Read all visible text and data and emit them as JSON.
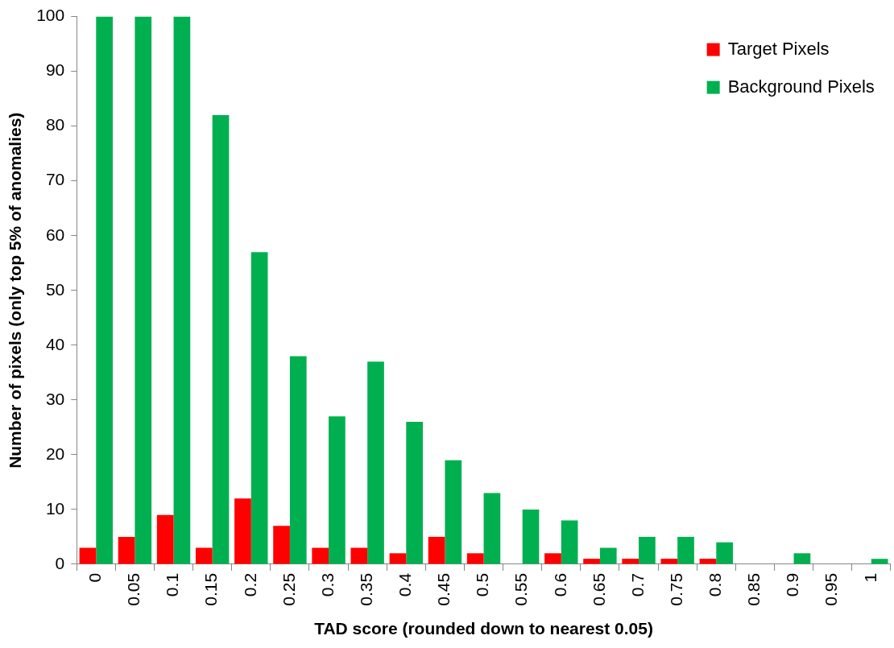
{
  "chart_data": {
    "type": "bar",
    "xlabel": "TAD score (rounded down to nearest 0.05)",
    "ylabel": "Number of pixels (only top 5% of anomalies)",
    "categories": [
      "0",
      "0.05",
      "0.1",
      "0.15",
      "0.2",
      "0.25",
      "0.3",
      "0.35",
      "0.4",
      "0.45",
      "0.5",
      "0.55",
      "0.6",
      "0.65",
      "0.7",
      "0.75",
      "0.8",
      "0.85",
      "0.9",
      "0.95",
      "1"
    ],
    "series": [
      {
        "name": "Target Pixels",
        "color": "#ff0000",
        "values": [
          3,
          5,
          9,
          3,
          12,
          7,
          3,
          3,
          2,
          5,
          2,
          0,
          2,
          1,
          1,
          1,
          1,
          0,
          0,
          0,
          0
        ]
      },
      {
        "name": "Background Pixels",
        "color": "#00b050",
        "values": [
          100,
          100,
          100,
          82,
          57,
          38,
          27,
          37,
          26,
          19,
          13,
          10,
          8,
          3,
          5,
          5,
          4,
          0,
          2,
          0,
          1
        ]
      }
    ],
    "ylim": [
      0,
      100
    ],
    "yticks": [
      0,
      10,
      20,
      30,
      40,
      50,
      60,
      70,
      80,
      90,
      100
    ],
    "legend": "top right"
  }
}
